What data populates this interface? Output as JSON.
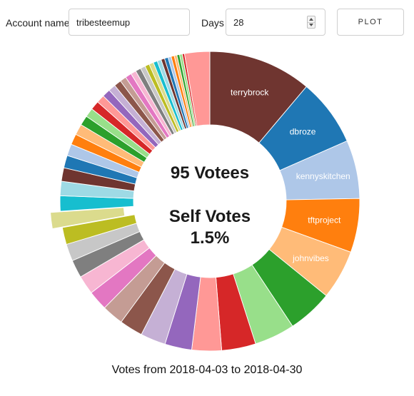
{
  "form": {
    "account_label": "Account name",
    "account_value": "tribesteemup",
    "days_label": "Days",
    "days_value": "28",
    "plot_label": "PLOT"
  },
  "center": {
    "votees_text": "95 Votees",
    "self_line1": "Self Votes",
    "self_line2": "1.5%"
  },
  "footer": {
    "caption": "Votes from 2018-04-03 to 2018-04-30"
  },
  "colors": {
    "palette": [
      "#1f77b4",
      "#aec7e8",
      "#ff7f0e",
      "#ffbb78",
      "#2ca02c",
      "#98df8a",
      "#d62728",
      "#ff9896",
      "#9467bd",
      "#c5b0d5",
      "#8c564b",
      "#c49c94",
      "#e377c2",
      "#f7b6d2",
      "#7f7f7f",
      "#c7c7c7",
      "#bcbd22",
      "#dbdb8d",
      "#17becf",
      "#9edae5"
    ],
    "brown": "#6f3530"
  },
  "chart_data": {
    "type": "pie",
    "style": "donut",
    "total_votees": 95,
    "self_vote_percent": 1.5,
    "highlighted_slice": "the slice pulled out from the ring on the left side",
    "slices": [
      {
        "label": "terrybrock",
        "value": 11.5,
        "color": "#6f3530"
      },
      {
        "label": "dbroze",
        "value": 7.5,
        "color": "#1f77b4"
      },
      {
        "label": "kennyskitchen",
        "value": 6.5,
        "color": "#aec7e8"
      },
      {
        "label": "tftproject",
        "value": 6.0,
        "color": "#ff7f0e"
      },
      {
        "label": "johnvibes",
        "value": 5.5,
        "color": "#ffbb78"
      },
      {
        "label": "",
        "value": 5.0,
        "color": "#2ca02c"
      },
      {
        "label": "",
        "value": 4.5,
        "color": "#98df8a"
      },
      {
        "label": "",
        "value": 3.8,
        "color": "#d62728"
      },
      {
        "label": "",
        "value": 3.3,
        "color": "#ff9896"
      },
      {
        "label": "",
        "value": 3.0,
        "color": "#9467bd"
      },
      {
        "label": "",
        "value": 2.8,
        "color": "#c5b0d5"
      },
      {
        "label": "",
        "value": 2.6,
        "color": "#8c564b"
      },
      {
        "label": "",
        "value": 2.4,
        "color": "#c49c94"
      },
      {
        "label": "",
        "value": 2.2,
        "color": "#e377c2"
      },
      {
        "label": "",
        "value": 2.1,
        "color": "#f7b6d2"
      },
      {
        "label": "",
        "value": 2.0,
        "color": "#7f7f7f"
      },
      {
        "label": "",
        "value": 1.9,
        "color": "#c7c7c7"
      },
      {
        "label": "",
        "value": 1.9,
        "color": "#bcbd22"
      },
      {
        "label": "",
        "value": 1.8,
        "color": "#dbdb8d",
        "exploded": true
      },
      {
        "label": "",
        "value": 1.7,
        "color": "#17becf"
      },
      {
        "label": "",
        "value": 1.6,
        "color": "#9edae5"
      },
      {
        "label": "",
        "value": 1.5,
        "color": "#6f3530"
      },
      {
        "label": "",
        "value": 1.4,
        "color": "#1f77b4"
      },
      {
        "label": "",
        "value": 1.3,
        "color": "#aec7e8"
      },
      {
        "label": "",
        "value": 1.2,
        "color": "#ff7f0e"
      },
      {
        "label": "",
        "value": 1.2,
        "color": "#ffbb78"
      },
      {
        "label": "",
        "value": 1.1,
        "color": "#2ca02c"
      },
      {
        "label": "",
        "value": 1.0,
        "color": "#98df8a"
      },
      {
        "label": "",
        "value": 1.0,
        "color": "#d62728"
      },
      {
        "label": "",
        "value": 0.9,
        "color": "#ff9896"
      },
      {
        "label": "",
        "value": 0.9,
        "color": "#9467bd"
      },
      {
        "label": "",
        "value": 0.8,
        "color": "#c5b0d5"
      },
      {
        "label": "",
        "value": 0.8,
        "color": "#8c564b"
      },
      {
        "label": "",
        "value": 0.7,
        "color": "#c49c94"
      },
      {
        "label": "",
        "value": 0.7,
        "color": "#e377c2"
      },
      {
        "label": "",
        "value": 0.6,
        "color": "#f7b6d2"
      },
      {
        "label": "",
        "value": 0.6,
        "color": "#7f7f7f"
      },
      {
        "label": "",
        "value": 0.55,
        "color": "#c7c7c7"
      },
      {
        "label": "",
        "value": 0.5,
        "color": "#bcbd22"
      },
      {
        "label": "",
        "value": 0.5,
        "color": "#dbdb8d"
      },
      {
        "label": "",
        "value": 0.45,
        "color": "#17becf"
      },
      {
        "label": "",
        "value": 0.45,
        "color": "#9edae5"
      },
      {
        "label": "",
        "value": 0.4,
        "color": "#6f3530"
      },
      {
        "label": "",
        "value": 0.4,
        "color": "#1f77b4"
      },
      {
        "label": "",
        "value": 0.35,
        "color": "#aec7e8"
      },
      {
        "label": "",
        "value": 0.35,
        "color": "#ff7f0e"
      },
      {
        "label": "",
        "value": 0.3,
        "color": "#ffbb78"
      },
      {
        "label": "",
        "value": 0.3,
        "color": "#2ca02c"
      },
      {
        "label": "",
        "value": 0.3,
        "color": "#98df8a"
      },
      {
        "label": "",
        "value": 0.25,
        "color": "#d62728"
      },
      {
        "label": "",
        "value": 2.8,
        "color": "#ff9896"
      }
    ]
  }
}
